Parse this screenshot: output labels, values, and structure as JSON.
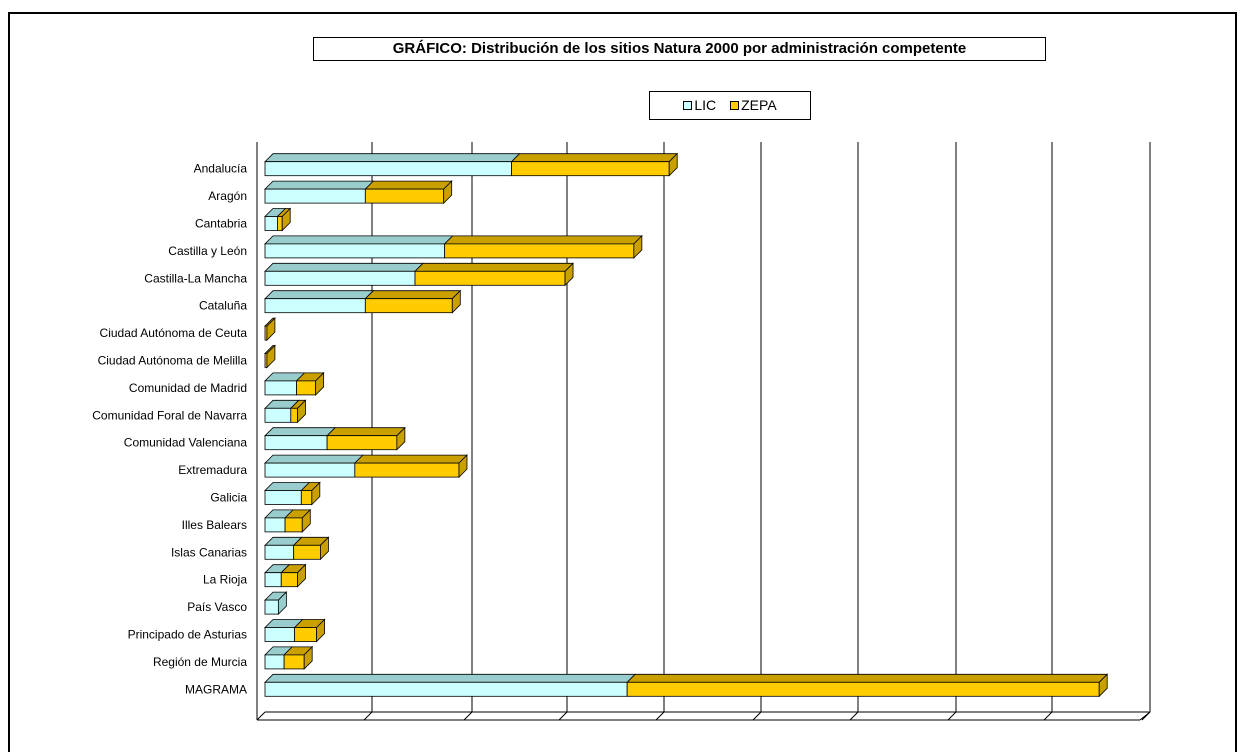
{
  "chart_data": {
    "type": "bar",
    "orientation": "horizontal",
    "stacked": true,
    "style": "3d",
    "title": "GRÁFICO: Distribución de los sitios Natura 2000 por administración competente",
    "legend_position": "top-center",
    "grid": true,
    "xlim": [
      0,
      900
    ],
    "categories": [
      "Andalucía",
      "Aragón",
      "Cantabria",
      "Castilla y León",
      "Castilla-La Mancha",
      "Cataluña",
      "Ciudad Autónoma de Ceuta",
      "Ciudad Autónoma de Melilla",
      "Comunidad de Madrid",
      "Comunidad Foral de Navarra",
      "Comunidad Valenciana",
      "Extremadura",
      "Galicia",
      "Illes Balears",
      "Islas Canarias",
      "La Rioja",
      "País Vasco",
      "Principado de Asturias",
      "Región de Murcia",
      "MAGRAMA"
    ],
    "series": [
      {
        "name": "LIC",
        "color": "#ccffff",
        "top_color": "#99cccc",
        "values": [
          258,
          105,
          13,
          188,
          157,
          105,
          0,
          0,
          33,
          27,
          65,
          94,
          38,
          21,
          30,
          17,
          14,
          31,
          20,
          379
        ]
      },
      {
        "name": "ZEPA",
        "color": "#ffcc00",
        "top_color": "#c9a000",
        "values": [
          165,
          82,
          5,
          198,
          157,
          91,
          2,
          2,
          20,
          7,
          73,
          109,
          11,
          18,
          28,
          17,
          0,
          23,
          21,
          494
        ]
      }
    ]
  }
}
